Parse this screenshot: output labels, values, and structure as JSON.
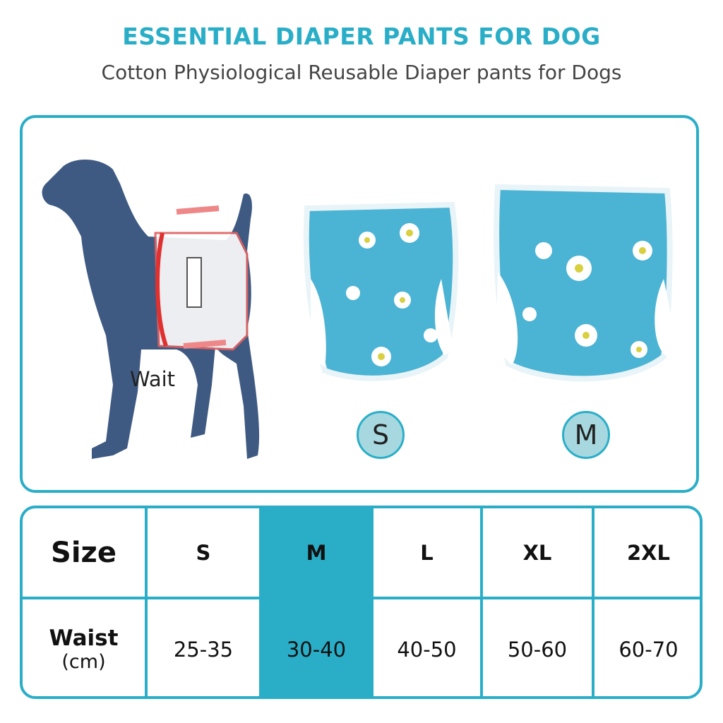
{
  "header": {
    "title": "ESSENTIAL DIAPER PANTS FOR DOG",
    "subtitle": "Cotton Physiological Reusable Diaper pants for Dogs"
  },
  "illustration": {
    "waist_label": "Wait",
    "badges": [
      "S",
      "M"
    ]
  },
  "colors": {
    "accent": "#2aaec8",
    "dog": "#3f5a82",
    "fabric": "#4bb3d3"
  },
  "table": {
    "row_headers": {
      "size": "Size",
      "waist": "Waist",
      "unit": "(cm)"
    },
    "columns": [
      {
        "size": "S",
        "waist": "25-35"
      },
      {
        "size": "M",
        "waist": "30-40",
        "highlighted": true
      },
      {
        "size": "L",
        "waist": "40-50"
      },
      {
        "size": "XL",
        "waist": "50-60"
      },
      {
        "size": "2XL",
        "waist": "60-70"
      }
    ]
  }
}
